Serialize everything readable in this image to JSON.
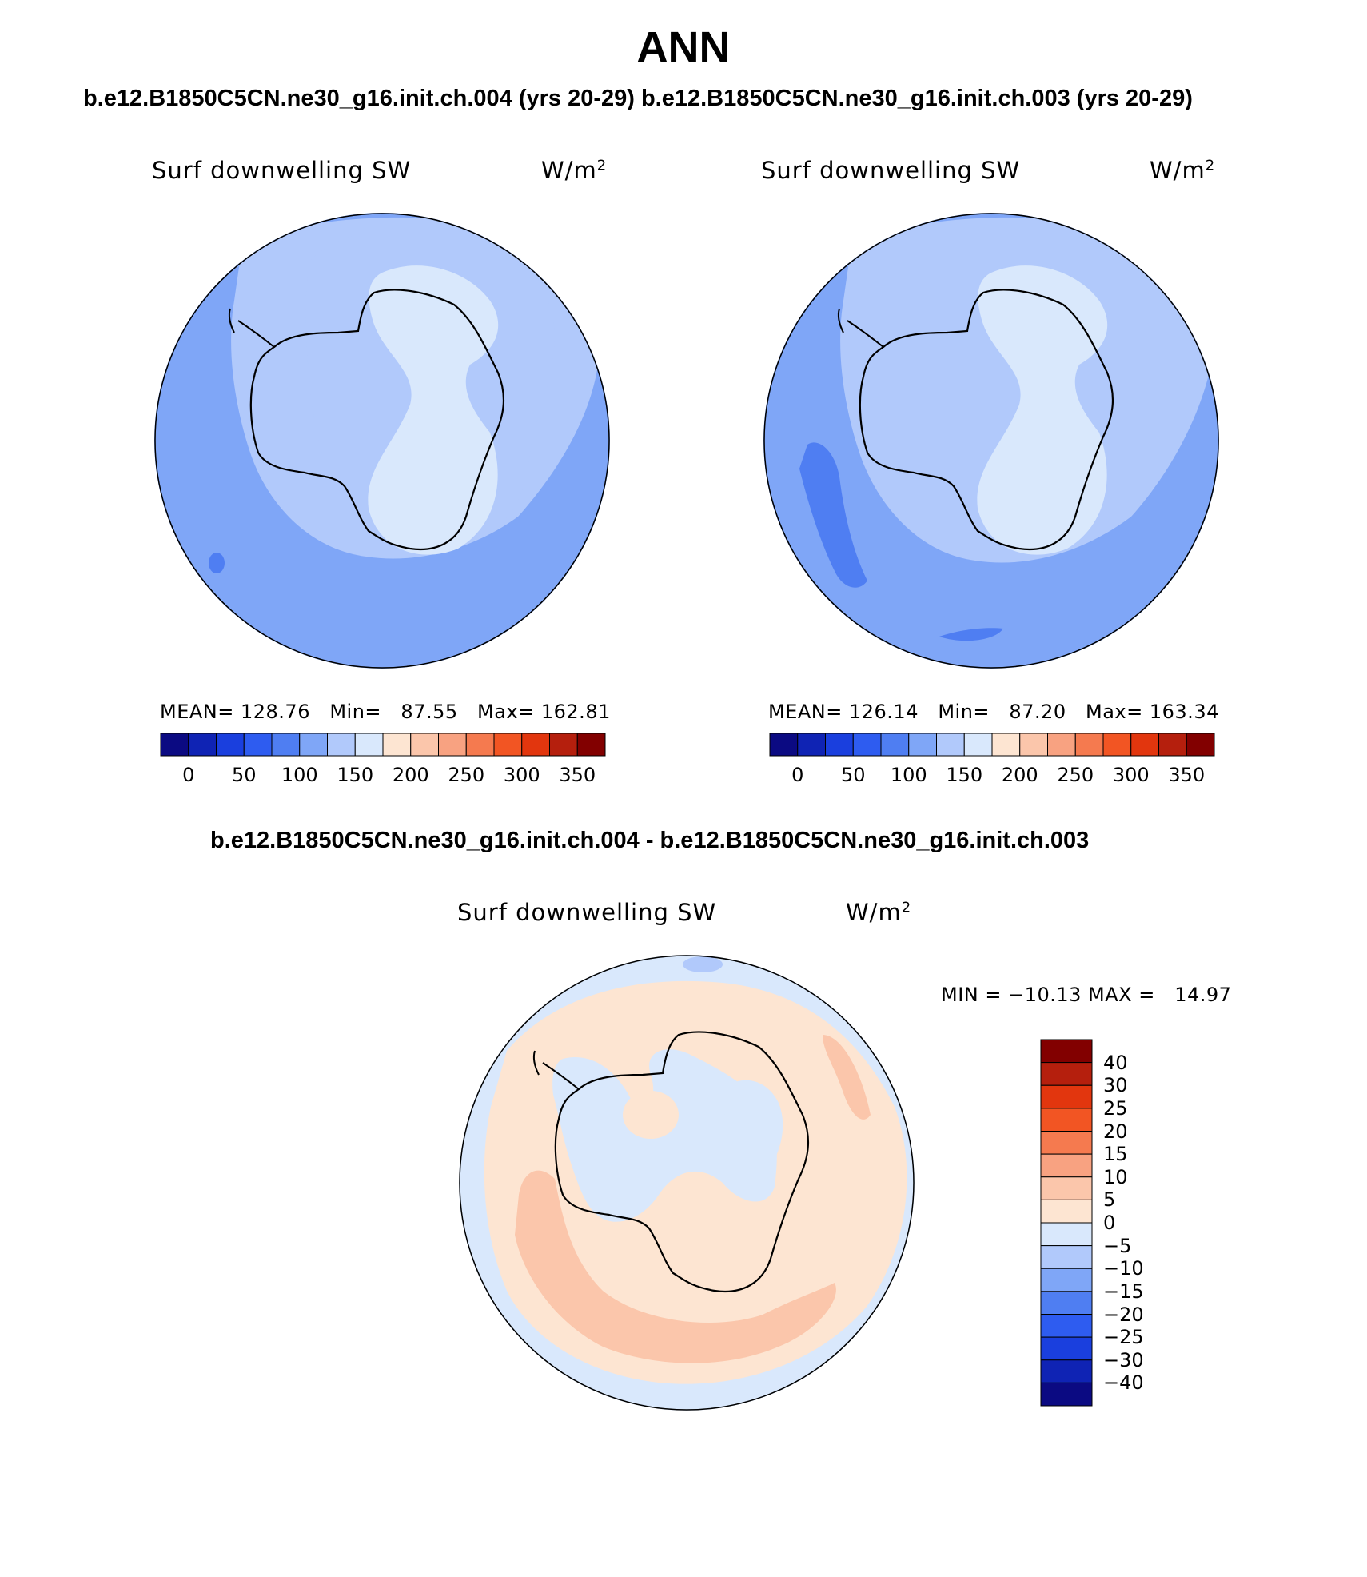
{
  "title": "ANN",
  "top_title": "b.e12.B1850C5CN.ne30_g16.init.ch.004 (yrs 20-29) b.e12.B1850C5CN.ne30_g16.init.ch.003 (yrs 20-29)",
  "diff_title": "b.e12.B1850C5CN.ne30_g16.init.ch.004 - b.e12.B1850C5CN.ne30_g16.init.ch.003",
  "panels": [
    {
      "variable": "Surf downwelling SW",
      "units": "W/m",
      "units_exp": "2",
      "stats_text": "MEAN= 128.76   Min=   87.55   Max= 162.81",
      "mean": 128.76,
      "min": 87.55,
      "max": 162.81
    },
    {
      "variable": "Surf downwelling SW",
      "units": "W/m",
      "units_exp": "2",
      "stats_text": "MEAN= 126.14   Min=   87.20   Max= 163.34",
      "mean": 126.14,
      "min": 87.2,
      "max": 163.34
    },
    {
      "variable": "Surf downwelling SW",
      "units": "W/m",
      "units_exp": "2",
      "stats_text": "MIN = −10.13 MAX =   14.97",
      "min": -10.13,
      "max": 14.97
    }
  ],
  "abs_colorbar": {
    "labels": [
      "0",
      "50",
      "100",
      "150",
      "200",
      "250",
      "300",
      "350"
    ],
    "colors": [
      "#0b0a82",
      "#0f23b4",
      "#1a3fde",
      "#2e5cf0",
      "#4f7ef2",
      "#7fa6f7",
      "#b1c9fb",
      "#d9e8fc",
      "#fde5d2",
      "#fbc6ab",
      "#f8a281",
      "#f57a4f",
      "#f25523",
      "#e2360e",
      "#b51f0d",
      "#820000"
    ]
  },
  "diff_colorbar": {
    "labels": [
      "40",
      "30",
      "25",
      "20",
      "15",
      "10",
      "5",
      "0",
      "−5",
      "−10",
      "−15",
      "−20",
      "−25",
      "−30",
      "−40"
    ],
    "colors": [
      "#820000",
      "#b51f0d",
      "#e2360e",
      "#f25523",
      "#f57a4f",
      "#f8a281",
      "#fbc6ab",
      "#fde5d2",
      "#d9e8fc",
      "#b1c9fb",
      "#7fa6f7",
      "#4f7ef2",
      "#2e5cf0",
      "#1a3fde",
      "#0f23b4",
      "#0b0a82"
    ]
  },
  "map_colors": {
    "ocean_dark": "#6f96f2",
    "ocean_mid": "#7fa6f7",
    "land_mid": "#b1c9fb",
    "land_light": "#d9e8fc",
    "blue_deep": "#4f7ef2",
    "diff_zero_neg": "#d9e8fc",
    "diff_pos_low": "#fde5d2",
    "diff_pos_mid": "#fbc6ab",
    "diff_neg_mid": "#b1c9fb"
  }
}
